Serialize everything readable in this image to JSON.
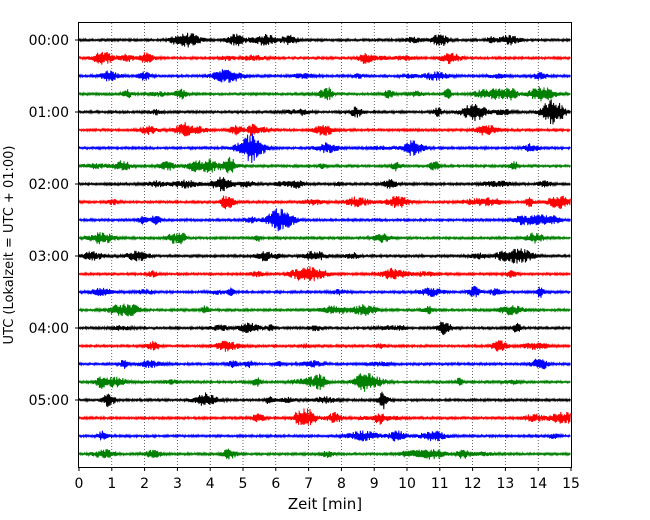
{
  "chart_data": {
    "type": "line",
    "title": "",
    "xlabel": "Zeit  [min]",
    "ylabel": "UTC (Lokalzeit = UTC + 01:00)",
    "xlim": [
      0,
      15
    ],
    "x_ticks": [
      "0",
      "1",
      "2",
      "3",
      "4",
      "5",
      "6",
      "7",
      "8",
      "9",
      "10",
      "11",
      "12",
      "13",
      "14",
      "15"
    ],
    "y_ticks": [
      "00:00",
      "01:00",
      "02:00",
      "03:00",
      "04:00",
      "05:00"
    ],
    "grid": "vertical dotted",
    "trace_interval_min": 15,
    "trace_colors": [
      "#000000",
      "#ff0000",
      "#0000ff",
      "#008000"
    ],
    "traces": [
      {
        "start": "00:00",
        "color": "#000000"
      },
      {
        "start": "00:15",
        "color": "#ff0000"
      },
      {
        "start": "00:30",
        "color": "#0000ff"
      },
      {
        "start": "00:45",
        "color": "#008000"
      },
      {
        "start": "01:00",
        "color": "#000000"
      },
      {
        "start": "01:15",
        "color": "#ff0000"
      },
      {
        "start": "01:30",
        "color": "#0000ff"
      },
      {
        "start": "01:45",
        "color": "#008000"
      },
      {
        "start": "02:00",
        "color": "#000000"
      },
      {
        "start": "02:15",
        "color": "#ff0000"
      },
      {
        "start": "02:30",
        "color": "#0000ff"
      },
      {
        "start": "02:45",
        "color": "#008000"
      },
      {
        "start": "03:00",
        "color": "#000000"
      },
      {
        "start": "03:15",
        "color": "#ff0000"
      },
      {
        "start": "03:30",
        "color": "#0000ff"
      },
      {
        "start": "03:45",
        "color": "#008000"
      },
      {
        "start": "04:00",
        "color": "#000000"
      },
      {
        "start": "04:15",
        "color": "#ff0000"
      },
      {
        "start": "04:30",
        "color": "#0000ff"
      },
      {
        "start": "04:45",
        "color": "#008000"
      },
      {
        "start": "05:00",
        "color": "#000000"
      },
      {
        "start": "05:15",
        "color": "#ff0000"
      },
      {
        "start": "05:30",
        "color": "#0000ff"
      },
      {
        "start": "05:45",
        "color": "#008000"
      }
    ]
  }
}
